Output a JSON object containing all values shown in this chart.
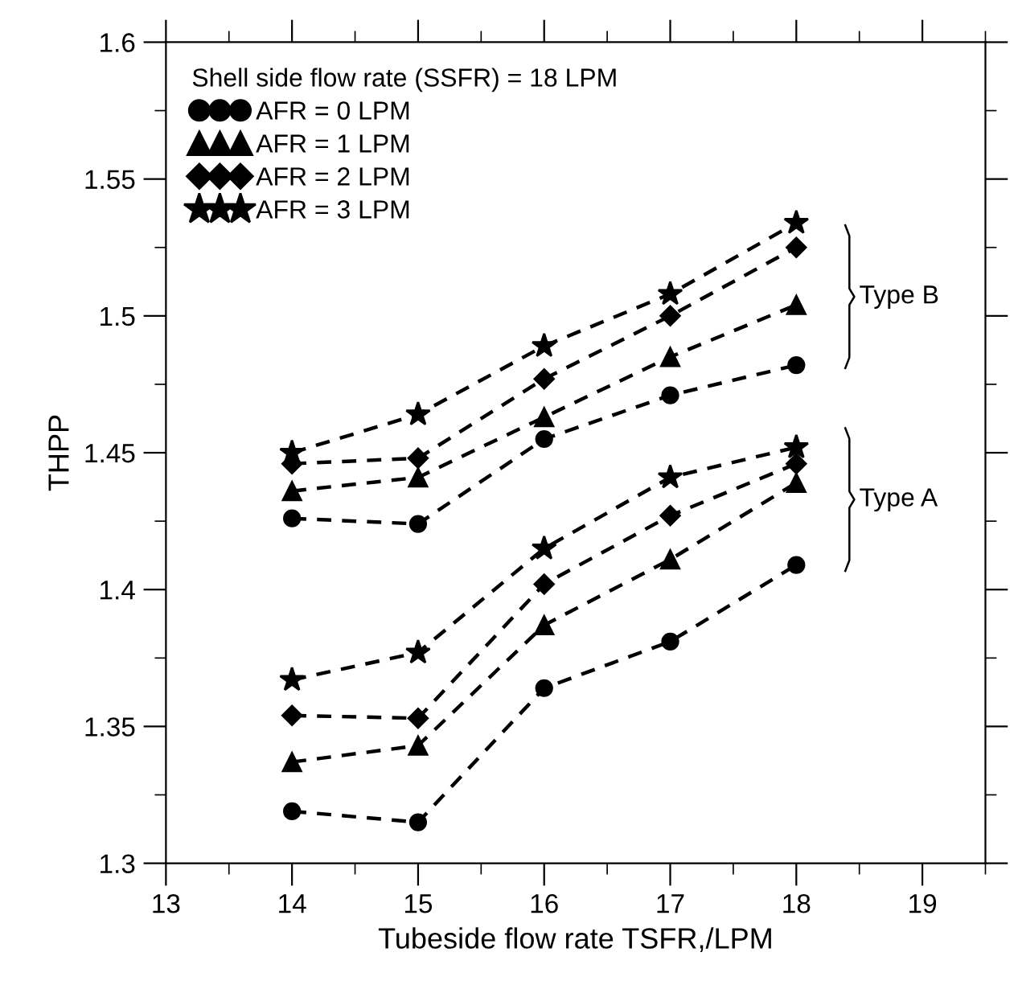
{
  "chart_data": {
    "type": "line",
    "xlabel": "Tubeside flow rate TSFR,/LPM",
    "ylabel": "THPP",
    "legend_title": "Shell side flow rate (SSFR) = 18 LPM",
    "x": [
      14,
      15,
      16,
      17,
      18
    ],
    "series": [
      {
        "name": "AFR = 0 LPM",
        "color": "#000000",
        "marker": "circle",
        "values": [
          1.426,
          1.424,
          1.455,
          1.471,
          1.482
        ]
      },
      {
        "name": "AFR = 1 LPM",
        "color": "#000000",
        "marker": "triangle",
        "values": [
          1.436,
          1.441,
          1.463,
          1.485,
          1.504
        ]
      },
      {
        "name": "AFR = 2 LPM",
        "color": "#000000",
        "marker": "diamond",
        "values": [
          1.446,
          1.448,
          1.477,
          1.5,
          1.525
        ]
      },
      {
        "name": "AFR = 3 LPM",
        "color": "#000000",
        "marker": "star",
        "values": [
          1.45,
          1.464,
          1.489,
          1.508,
          1.534
        ]
      },
      {
        "color": "#000000",
        "marker": "circle",
        "values": [
          1.319,
          1.315,
          1.364,
          1.381,
          1.409
        ]
      },
      {
        "color": "#000000",
        "marker": "triangle",
        "values": [
          1.337,
          1.343,
          1.387,
          1.411,
          1.439
        ]
      },
      {
        "color": "#000000",
        "marker": "diamond",
        "values": [
          1.354,
          1.353,
          1.402,
          1.427,
          1.446
        ]
      },
      {
        "color": "#000000",
        "marker": "star",
        "values": [
          1.367,
          1.377,
          1.415,
          1.441,
          1.452
        ]
      }
    ],
    "line_style": "dashed",
    "xlim": [
      13,
      19.5
    ],
    "xticks": [
      13,
      14,
      15,
      16,
      17,
      18,
      19
    ],
    "ylim": [
      1.3,
      1.6
    ],
    "yticks": [
      1.3,
      1.35,
      1.4,
      1.45,
      1.5,
      1.55,
      1.6
    ],
    "legend": "top left",
    "grid": false,
    "annotations": [
      "Type B",
      "Type A"
    ]
  }
}
